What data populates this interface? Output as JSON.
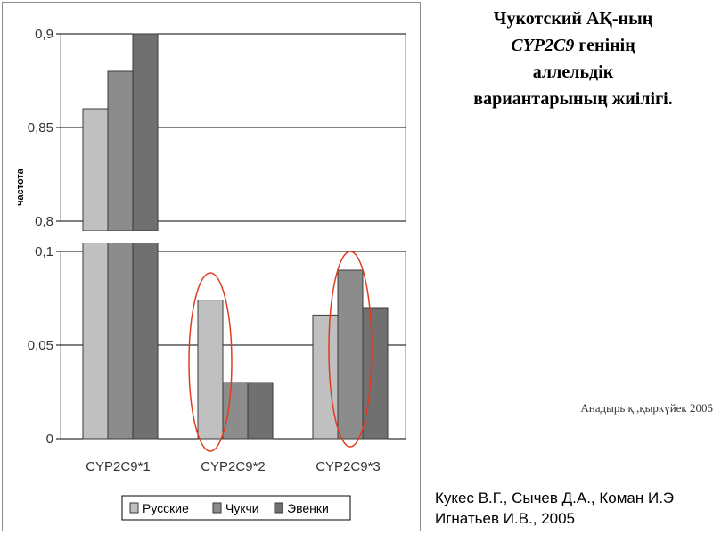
{
  "title": {
    "line1": "Чукотский АҚ-ның",
    "gene": "CYP2C9",
    "line2_rest": " генінің",
    "line3": "аллельдік",
    "line4": "вариантарының жиілігі."
  },
  "place_date": "Анадырь қ.,қыркүйек 2005",
  "authors": {
    "line1": "Кукес В.Г., Сычев Д.А., Коман И.Э",
    "line2": "Игнатьев И.В., 2005"
  },
  "colors": {
    "russkie": "#c0c0c0",
    "chukchi": "#8c8c8c",
    "evenki": "#707070",
    "highlight_ellipse": "#e03c1e"
  },
  "chart_data": {
    "type": "bar",
    "ylabel": "частота",
    "broken_axis": true,
    "upper_axis": {
      "ylim": [
        0.8,
        0.9
      ],
      "ticks": [
        "0,8",
        "0,85",
        "0,9"
      ]
    },
    "lower_axis": {
      "ylim": [
        0,
        0.1
      ],
      "ticks": [
        "0",
        "0,05",
        "0,1"
      ]
    },
    "categories": [
      "CYP2C9*1",
      "CYP2C9*2",
      "CYP2C9*3"
    ],
    "series": [
      {
        "name": "Русские",
        "values": [
          0.86,
          0.074,
          0.066
        ]
      },
      {
        "name": "Чукчи",
        "values": [
          0.88,
          0.03,
          0.09
        ]
      },
      {
        "name": "Эвенки",
        "values": [
          0.9,
          0.03,
          0.07
        ]
      }
    ],
    "legend_position": "bottom",
    "grid": true,
    "highlighted_categories": [
      "CYP2C9*2",
      "CYP2C9*3"
    ]
  }
}
